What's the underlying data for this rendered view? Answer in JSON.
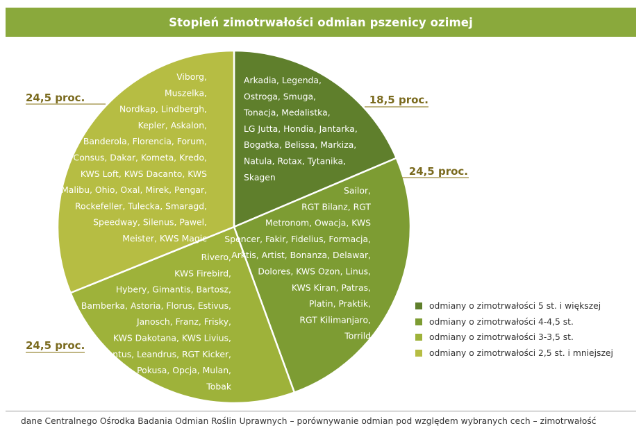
{
  "title": "Stopień zimotrwałości odmian pszenicy ozimej",
  "source": "dane Centralnego Ośrodka Badania Odmian Roślin Uprawnych – porównywanie odmian pod względem wybranych cech – zimotrwałość",
  "colors": {
    "title_bg": "#8aa93c",
    "slice_5": "#5f7f2c",
    "slice_4": "#7d9c33",
    "slice_3": "#9eb23a",
    "slice_2": "#b6bd43",
    "label_text": "#7a6a1e"
  },
  "chart_data": {
    "type": "pie",
    "title": "Stopień zimotrwałości odmian pszenicy ozimej",
    "slices": [
      {
        "key": "slice_5",
        "legend": "odmiany o zimotrwałości 5 st. i większej",
        "value": 18.5,
        "label": "18,5 proc.",
        "varieties": [
          "Arkadia, Legenda,",
          "Ostroga, Smuga,",
          "Tonacja, Medalistka,",
          "LG Jutta, Hondia, Jantarka,",
          "Bogatka, Belissa, Markiza,",
          "Natula, Rotax, Tytanika,",
          "Skagen"
        ]
      },
      {
        "key": "slice_4",
        "legend": "odmiany o zimotrwałości 4-4,5 st.",
        "value": 24.5,
        "label": "24,5 proc.",
        "varieties": [
          "Sailor,",
          "RGT Bilanz, RGT",
          "Metronom, Owacja, KWS",
          "Spencer, Fakir, Fidelius, Formacja,",
          "Arktis, Artist, Bonanza, Delawar,",
          "Dolores, KWS Ozon, Linus,",
          "KWS Kiran, Patras,",
          "Platin, Praktik,",
          "RGT Kilimanjaro,",
          "Torrild"
        ]
      },
      {
        "key": "slice_3",
        "legend": "odmiany o zimotrwałości 3-3,5 st.",
        "value": 24.5,
        "label": "24,5 proc.",
        "varieties": [
          "Rivero,",
          "KWS Firebird,",
          "Hybery, Gimantis, Bartosz,",
          "Bamberka, Astoria, Florus, Estivus,",
          "Janosch, Franz, Frisky,",
          "KWS Dakotana, KWS Livius,",
          "Lavantus, Leandrus, RGT Kicker,",
          "Pokusa, Opcja, Mulan,",
          "Tobak"
        ]
      },
      {
        "key": "slice_2",
        "legend": "odmiany o zimotrwałości 2,5 st. i mniejszej",
        "value": 24.5,
        "label": "24,5 proc.",
        "varieties": [
          "Viborg,",
          "Muszelka,",
          "Nordkap, Lindbergh,",
          "Kepler, Askalon,",
          "Banderola, Florencia, Forum,",
          "Consus, Dakar, Kometa, Kredo,",
          "KWS Loft, KWS Dacanto, KWS",
          "Malibu, Ohio, Oxal, Mirek, Pengar,",
          "Rockefeller, Tulecka,  Smaragd,",
          "Speedway, Silenus, Pawel,",
          "Meister, KWS Magic"
        ]
      }
    ]
  }
}
